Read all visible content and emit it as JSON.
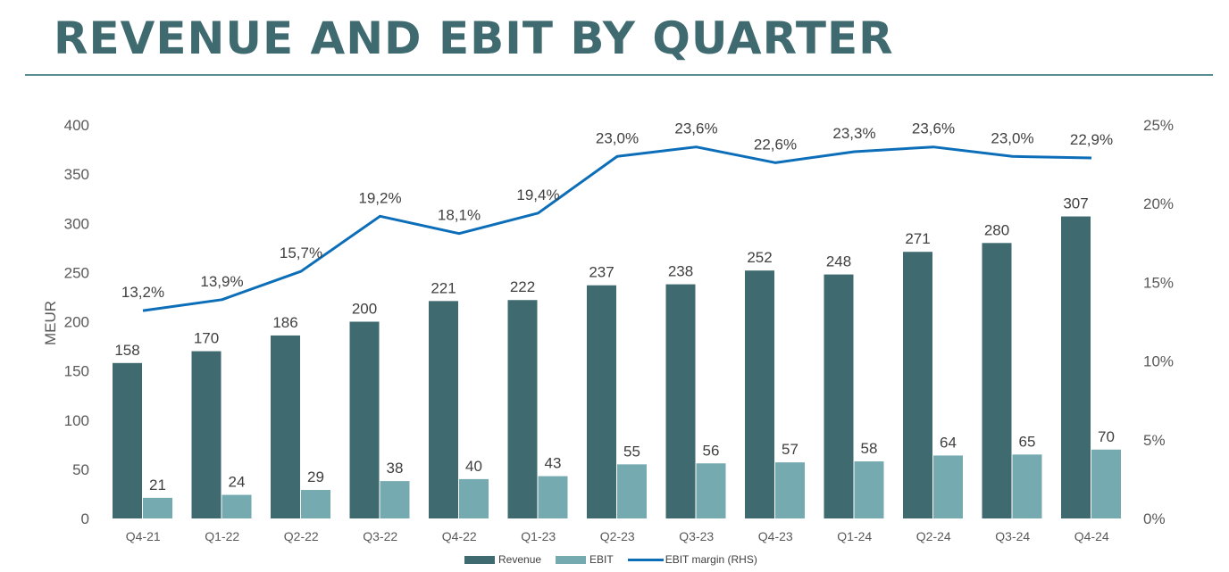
{
  "page": {
    "title": "REVENUE AND EBIT BY QUARTER"
  },
  "colors": {
    "title": "#3f6b70",
    "revenue": "#3f6b70",
    "ebit": "#75aab1",
    "margin": "#0c6eb8"
  },
  "chart_data": {
    "type": "bar",
    "title": "REVENUE AND EBIT BY QUARTER",
    "ylabel": "MEUR",
    "ylim": [
      0,
      400
    ],
    "yticks": [
      "0",
      "50",
      "100",
      "150",
      "200",
      "250",
      "300",
      "350",
      "400"
    ],
    "y2lim": [
      0,
      25
    ],
    "y2ticks": [
      "0%",
      "5%",
      "10%",
      "15%",
      "20%",
      "25%"
    ],
    "categories": [
      "Q4-21",
      "Q1-22",
      "Q2-22",
      "Q3-22",
      "Q4-22",
      "Q1-23",
      "Q2-23",
      "Q3-23",
      "Q4-23",
      "Q1-24",
      "Q2-24",
      "Q3-24",
      "Q4-24"
    ],
    "series": [
      {
        "name": "Revenue",
        "kind": "bar",
        "axis": "left",
        "values": [
          158,
          170,
          186,
          200,
          221,
          222,
          237,
          238,
          252,
          248,
          271,
          280,
          307
        ]
      },
      {
        "name": "EBIT",
        "kind": "bar",
        "axis": "left",
        "values": [
          21,
          24,
          29,
          38,
          40,
          43,
          55,
          56,
          57,
          58,
          64,
          65,
          70
        ]
      },
      {
        "name": "EBIT margin (RHS)",
        "kind": "line",
        "axis": "right",
        "values": [
          13.2,
          13.9,
          15.7,
          19.2,
          18.1,
          19.4,
          23.0,
          23.6,
          22.6,
          23.3,
          23.6,
          23.0,
          22.9
        ],
        "labels": [
          "13,2%",
          "13,9%",
          "15,7%",
          "19,2%",
          "18,1%",
          "19,4%",
          "23,0%",
          "23,6%",
          "22,6%",
          "23,3%",
          "23,6%",
          "23,0%",
          "22,9%"
        ]
      }
    ],
    "legend": "bottom",
    "grid": false
  }
}
